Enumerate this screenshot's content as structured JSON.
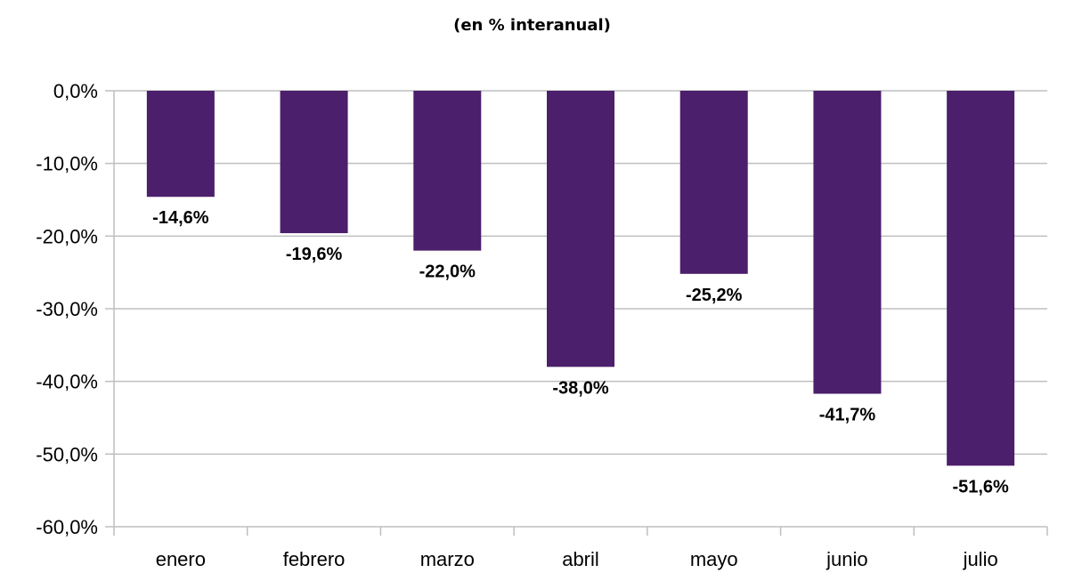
{
  "chart_data": {
    "type": "bar",
    "title": "(en % interanual)",
    "xlabel": "",
    "ylabel": "",
    "categories": [
      "enero",
      "febrero",
      "marzo",
      "abril",
      "mayo",
      "junio",
      "julio"
    ],
    "values": [
      -14.6,
      -19.6,
      -22.0,
      -38.0,
      -25.2,
      -41.7,
      -51.6
    ],
    "data_labels": [
      "-14,6%",
      "-19,6%",
      "-22,0%",
      "-38,0%",
      "-25,2%",
      "-41,7%",
      "-51,6%"
    ],
    "ylim": [
      -60,
      0
    ],
    "yticks": [
      0,
      -10,
      -20,
      -30,
      -40,
      -50,
      -60
    ],
    "ytick_labels": [
      "0,0%",
      "-10,0%",
      "-20,0%",
      "-30,0%",
      "-40,0%",
      "-50,0%",
      "-60,0%"
    ],
    "grid": true,
    "legend": "none",
    "bar_color": "#4b1f6b",
    "grid_color": "#bfbfbf"
  }
}
